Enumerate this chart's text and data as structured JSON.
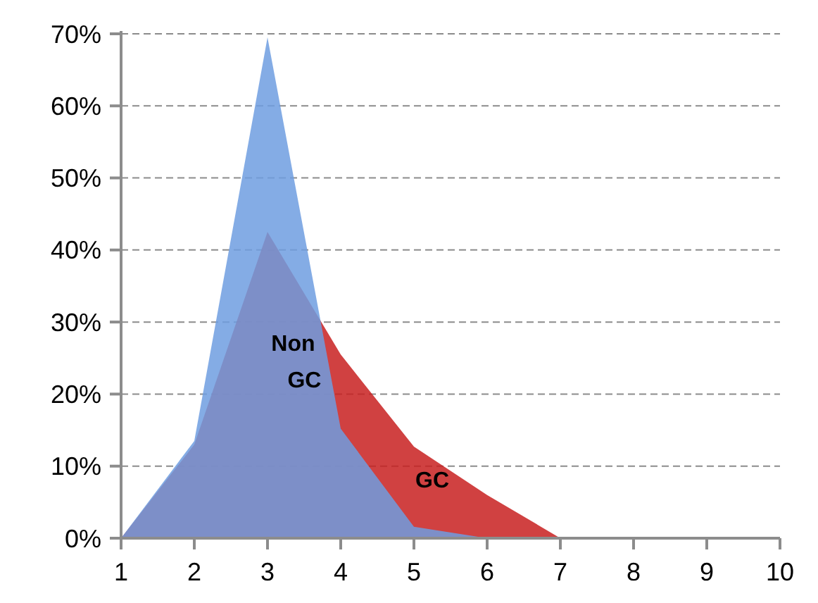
{
  "chart_data": {
    "type": "area",
    "x": [
      1,
      2,
      3,
      4,
      5,
      6,
      7,
      8,
      9,
      10
    ],
    "series": [
      {
        "name": "GC",
        "color": "#c82020",
        "values": [
          0,
          13,
          42.5,
          25.5,
          12.7,
          6,
          0,
          0,
          0,
          0
        ]
      },
      {
        "name": "Non GC",
        "color": "#6f9ee0",
        "values": [
          0,
          13.5,
          69.5,
          15.2,
          1.6,
          0,
          0,
          0,
          0,
          0
        ]
      }
    ],
    "xlim": [
      1,
      10
    ],
    "xticks": [
      1,
      2,
      3,
      4,
      5,
      6,
      7,
      8,
      9,
      10
    ],
    "ylim": [
      0,
      70
    ],
    "yticks": [
      {
        "value": 0,
        "label": "0%"
      },
      {
        "value": 10,
        "label": "10%"
      },
      {
        "value": 20,
        "label": "20%"
      },
      {
        "value": 30,
        "label": "30%"
      },
      {
        "value": 40,
        "label": "40%"
      },
      {
        "value": 50,
        "label": "50%"
      },
      {
        "value": 60,
        "label": "60%"
      },
      {
        "value": 70,
        "label": "70%"
      }
    ],
    "grid": "y"
  }
}
